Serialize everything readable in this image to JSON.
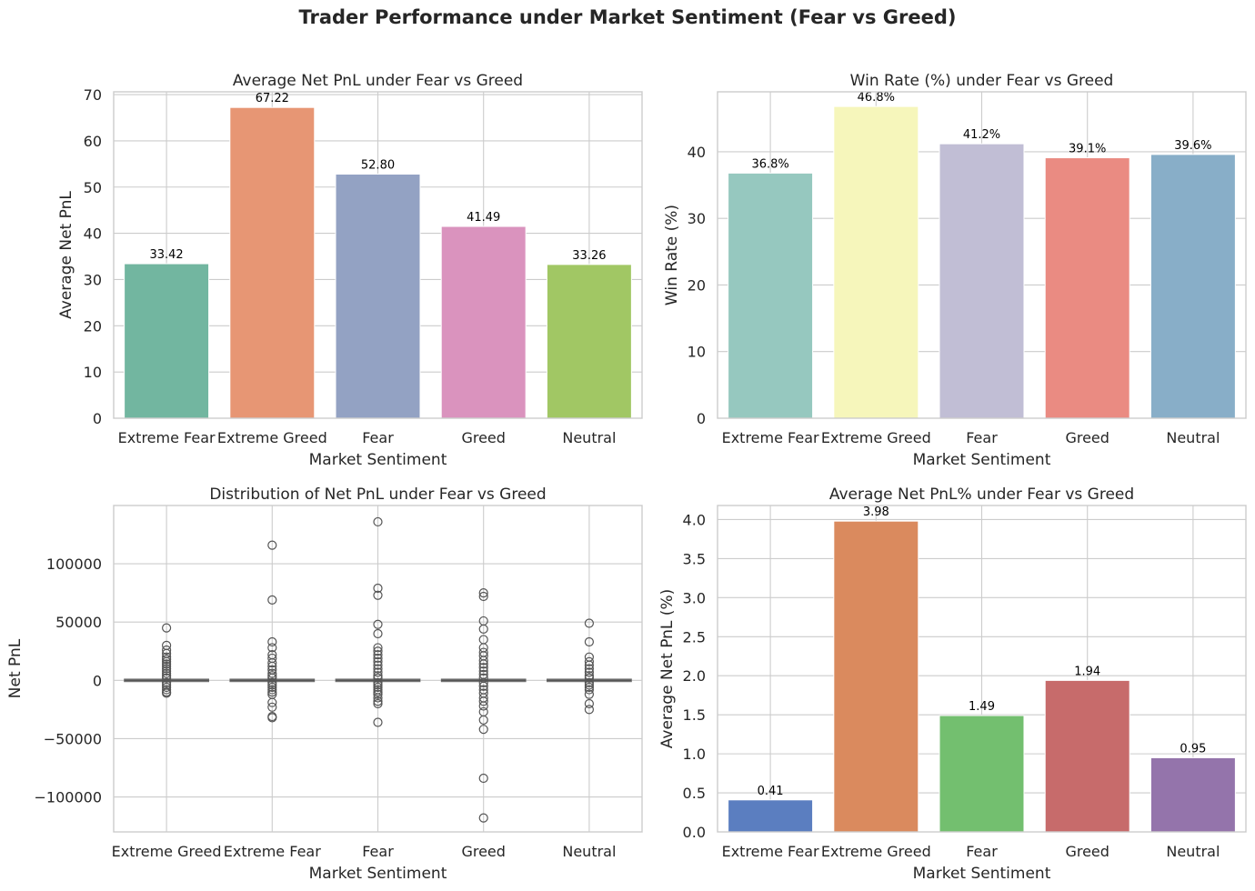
{
  "figure": {
    "title": "Trader Performance under Market Sentiment (Fear vs Greed)"
  },
  "chart_data": [
    {
      "type": "bar",
      "title": "Average Net PnL under Fear vs Greed",
      "xlabel": "Market Sentiment",
      "ylabel": "Average Net PnL",
      "categories": [
        "Extreme Fear",
        "Extreme Greed",
        "Fear",
        "Greed",
        "Neutral"
      ],
      "values": [
        33.42,
        67.22,
        52.8,
        41.49,
        33.26
      ],
      "value_labels": [
        "33.42",
        "67.22",
        "52.80",
        "41.49",
        "33.26"
      ],
      "colors": [
        "#72b6a0",
        "#e79674",
        "#93a2c3",
        "#da93be",
        "#a1c764"
      ],
      "ylim": [
        0,
        70.6
      ],
      "yticks": [
        0,
        10,
        20,
        30,
        40,
        50,
        60,
        70
      ],
      "ytick_labels": [
        "0",
        "10",
        "20",
        "30",
        "40",
        "50",
        "60",
        "70"
      ],
      "grid": true
    },
    {
      "type": "bar",
      "title": "Win Rate (%) under Fear vs Greed",
      "xlabel": "Market Sentiment",
      "ylabel": "Win Rate (%)",
      "categories": [
        "Extreme Fear",
        "Extreme Greed",
        "Fear",
        "Greed",
        "Neutral"
      ],
      "values": [
        36.8,
        46.8,
        41.2,
        39.1,
        39.6
      ],
      "value_labels": [
        "36.8%",
        "46.8%",
        "41.2%",
        "39.1%",
        "39.6%"
      ],
      "colors": [
        "#96c8bf",
        "#f6f6bb",
        "#c1bed5",
        "#ea8b82",
        "#88aec8"
      ],
      "ylim": [
        0,
        49
      ],
      "yticks": [
        0,
        10,
        20,
        30,
        40
      ],
      "ytick_labels": [
        "0",
        "10",
        "20",
        "30",
        "40"
      ],
      "grid": true
    },
    {
      "type": "box",
      "title": "Distribution of Net PnL under Fear vs Greed",
      "xlabel": "Market Sentiment",
      "ylabel": "Net PnL",
      "categories": [
        "Extreme Greed",
        "Extreme Fear",
        "Fear",
        "Greed",
        "Neutral"
      ],
      "median": [
        0,
        0,
        0,
        0,
        0
      ],
      "outliers": [
        [
          45000,
          30000,
          26000,
          23000,
          20000,
          18000,
          16000,
          14000,
          12000,
          10000,
          8000,
          6000,
          4000,
          2000,
          -2000,
          -4000,
          -6000,
          -8000,
          -10000,
          -11000
        ],
        [
          116000,
          69000,
          33000,
          28000,
          22000,
          19000,
          15000,
          12000,
          9000,
          6000,
          4000,
          2000,
          -2000,
          -4000,
          -6000,
          -8000,
          -10000,
          -12000,
          -19000,
          -23000,
          -31000,
          -32000
        ],
        [
          136000,
          79000,
          73000,
          48000,
          40000,
          28000,
          25000,
          22000,
          19000,
          16000,
          13000,
          10000,
          7000,
          4000,
          2000,
          -2000,
          -4000,
          -6000,
          -8000,
          -10000,
          -12000,
          -15000,
          -18000,
          -20000,
          -36000
        ],
        [
          75000,
          72000,
          51000,
          44000,
          35000,
          28000,
          24000,
          21000,
          17000,
          14000,
          11000,
          8000,
          5000,
          2000,
          -2000,
          -5000,
          -8000,
          -11000,
          -15000,
          -18000,
          -22000,
          -27000,
          -34000,
          -42000,
          -84000,
          -118000
        ],
        [
          49000,
          33000,
          20000,
          16000,
          13000,
          10000,
          7000,
          4000,
          2000,
          -2000,
          -4000,
          -6000,
          -8000,
          -12000,
          -20000,
          -25000
        ]
      ],
      "ylim": [
        -130000,
        150000
      ],
      "yticks": [
        -100000,
        -50000,
        0,
        50000,
        100000
      ],
      "ytick_labels": [
        "−100000",
        "−50000",
        "0",
        "50000",
        "100000"
      ],
      "grid": true
    },
    {
      "type": "bar",
      "title": "Average Net PnL% under Fear vs Greed",
      "xlabel": "Market Sentiment",
      "ylabel": "Average Net PnL (%)",
      "categories": [
        "Extreme Fear",
        "Extreme Greed",
        "Fear",
        "Greed",
        "Neutral"
      ],
      "values": [
        0.41,
        3.98,
        1.49,
        1.94,
        0.95
      ],
      "value_labels": [
        "0.41",
        "3.98",
        "1.49",
        "1.94",
        "0.95"
      ],
      "colors": [
        "#5b7ec0",
        "#da8a5e",
        "#73bf6f",
        "#c76b6b",
        "#9474ab"
      ],
      "ylim": [
        0,
        4.18
      ],
      "yticks": [
        0,
        0.5,
        1.0,
        1.5,
        2.0,
        2.5,
        3.0,
        3.5,
        4.0
      ],
      "ytick_labels": [
        "0.0",
        "0.5",
        "1.0",
        "1.5",
        "2.0",
        "2.5",
        "3.0",
        "3.5",
        "4.0"
      ],
      "grid": true
    }
  ]
}
